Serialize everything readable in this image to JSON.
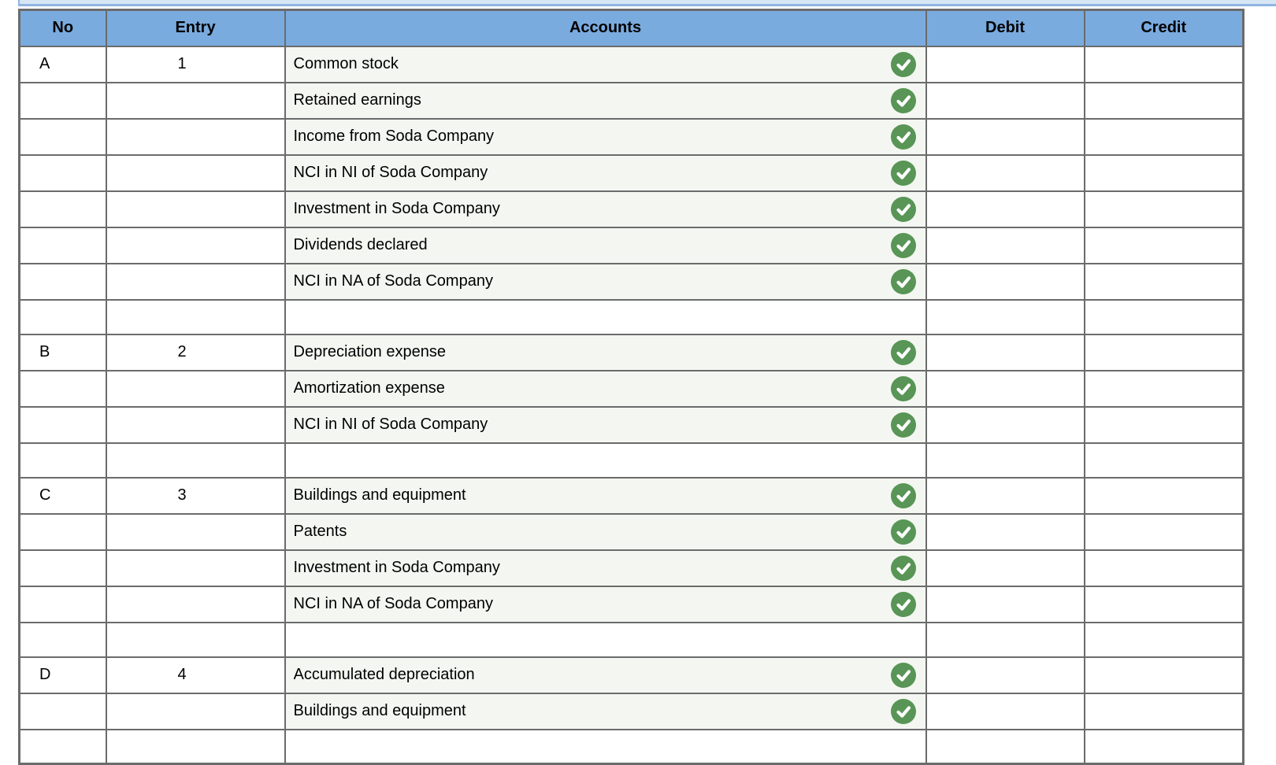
{
  "colors": {
    "header_bg": "#7aabdf",
    "border_gray": "#6b6b6b",
    "account_bg": "#f4f7f1",
    "check_green": "#589556",
    "band_bg": "#d7e6f5",
    "band_border": "#8fb5e3"
  },
  "table": {
    "headers": {
      "no": "No",
      "entry": "Entry",
      "accounts": "Accounts",
      "debit": "Debit",
      "credit": "Credit"
    },
    "rows": [
      {
        "no": "A",
        "entry": "1",
        "account": "Common stock",
        "check": true,
        "debit": "",
        "credit": ""
      },
      {
        "no": "",
        "entry": "",
        "account": "Retained earnings",
        "check": true,
        "debit": "",
        "credit": ""
      },
      {
        "no": "",
        "entry": "",
        "account": "Income from Soda Company",
        "check": true,
        "debit": "",
        "credit": ""
      },
      {
        "no": "",
        "entry": "",
        "account": "NCI in NI of Soda Company",
        "check": true,
        "debit": "",
        "credit": ""
      },
      {
        "no": "",
        "entry": "",
        "account": "Investment in Soda Company",
        "check": true,
        "debit": "",
        "credit": ""
      },
      {
        "no": "",
        "entry": "",
        "account": "Dividends declared",
        "check": true,
        "debit": "",
        "credit": ""
      },
      {
        "no": "",
        "entry": "",
        "account": "NCI in NA of Soda Company",
        "check": true,
        "debit": "",
        "credit": ""
      },
      {
        "separator": true
      },
      {
        "no": "B",
        "entry": "2",
        "account": "Depreciation expense",
        "check": true,
        "debit": "",
        "credit": ""
      },
      {
        "no": "",
        "entry": "",
        "account": "Amortization expense",
        "check": true,
        "debit": "",
        "credit": ""
      },
      {
        "no": "",
        "entry": "",
        "account": "NCI in NI of Soda Company",
        "check": true,
        "debit": "",
        "credit": ""
      },
      {
        "separator": true
      },
      {
        "no": "C",
        "entry": "3",
        "account": "Buildings and equipment",
        "check": true,
        "debit": "",
        "credit": ""
      },
      {
        "no": "",
        "entry": "",
        "account": "Patents",
        "check": true,
        "debit": "",
        "credit": ""
      },
      {
        "no": "",
        "entry": "",
        "account": "Investment in Soda Company",
        "check": true,
        "debit": "",
        "credit": ""
      },
      {
        "no": "",
        "entry": "",
        "account": "NCI in NA of Soda Company",
        "check": true,
        "debit": "",
        "credit": ""
      },
      {
        "separator": true
      },
      {
        "no": "D",
        "entry": "4",
        "account": "Accumulated depreciation",
        "check": true,
        "debit": "",
        "credit": ""
      },
      {
        "no": "",
        "entry": "",
        "account": "Buildings and equipment",
        "check": true,
        "debit": "",
        "credit": ""
      },
      {
        "separator": true
      }
    ],
    "check_icon_name": "correct-check-icon"
  }
}
